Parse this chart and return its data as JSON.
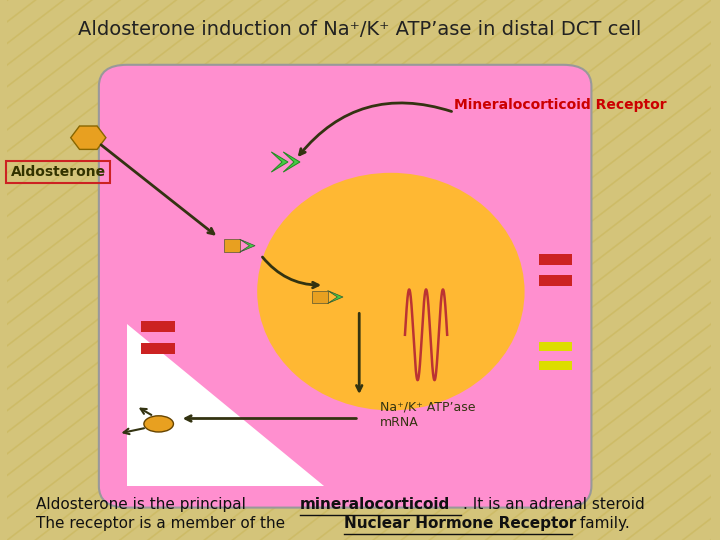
{
  "bg_color": "#D4C47A",
  "title": "Aldosterone induction of Na⁺/K⁺ ATP’ase in distal DCT cell",
  "title_fontsize": 14,
  "title_color": "#222222",
  "cell_color": "#FF8FCF",
  "nucleus_color": "#FFB833",
  "mineralocorticoid_label": "Mineralocorticoid Receptor",
  "mineralocorticoid_color": "#CC0000",
  "aldosterone_label": "Aldosterone",
  "orange_color": "#E8A020",
  "green_color": "#44CC44",
  "red_color": "#CC2222",
  "yellow_color": "#DDDD00",
  "dark_arrow_color": "#333311",
  "text_color": "#111111",
  "text_fontsize": 11
}
